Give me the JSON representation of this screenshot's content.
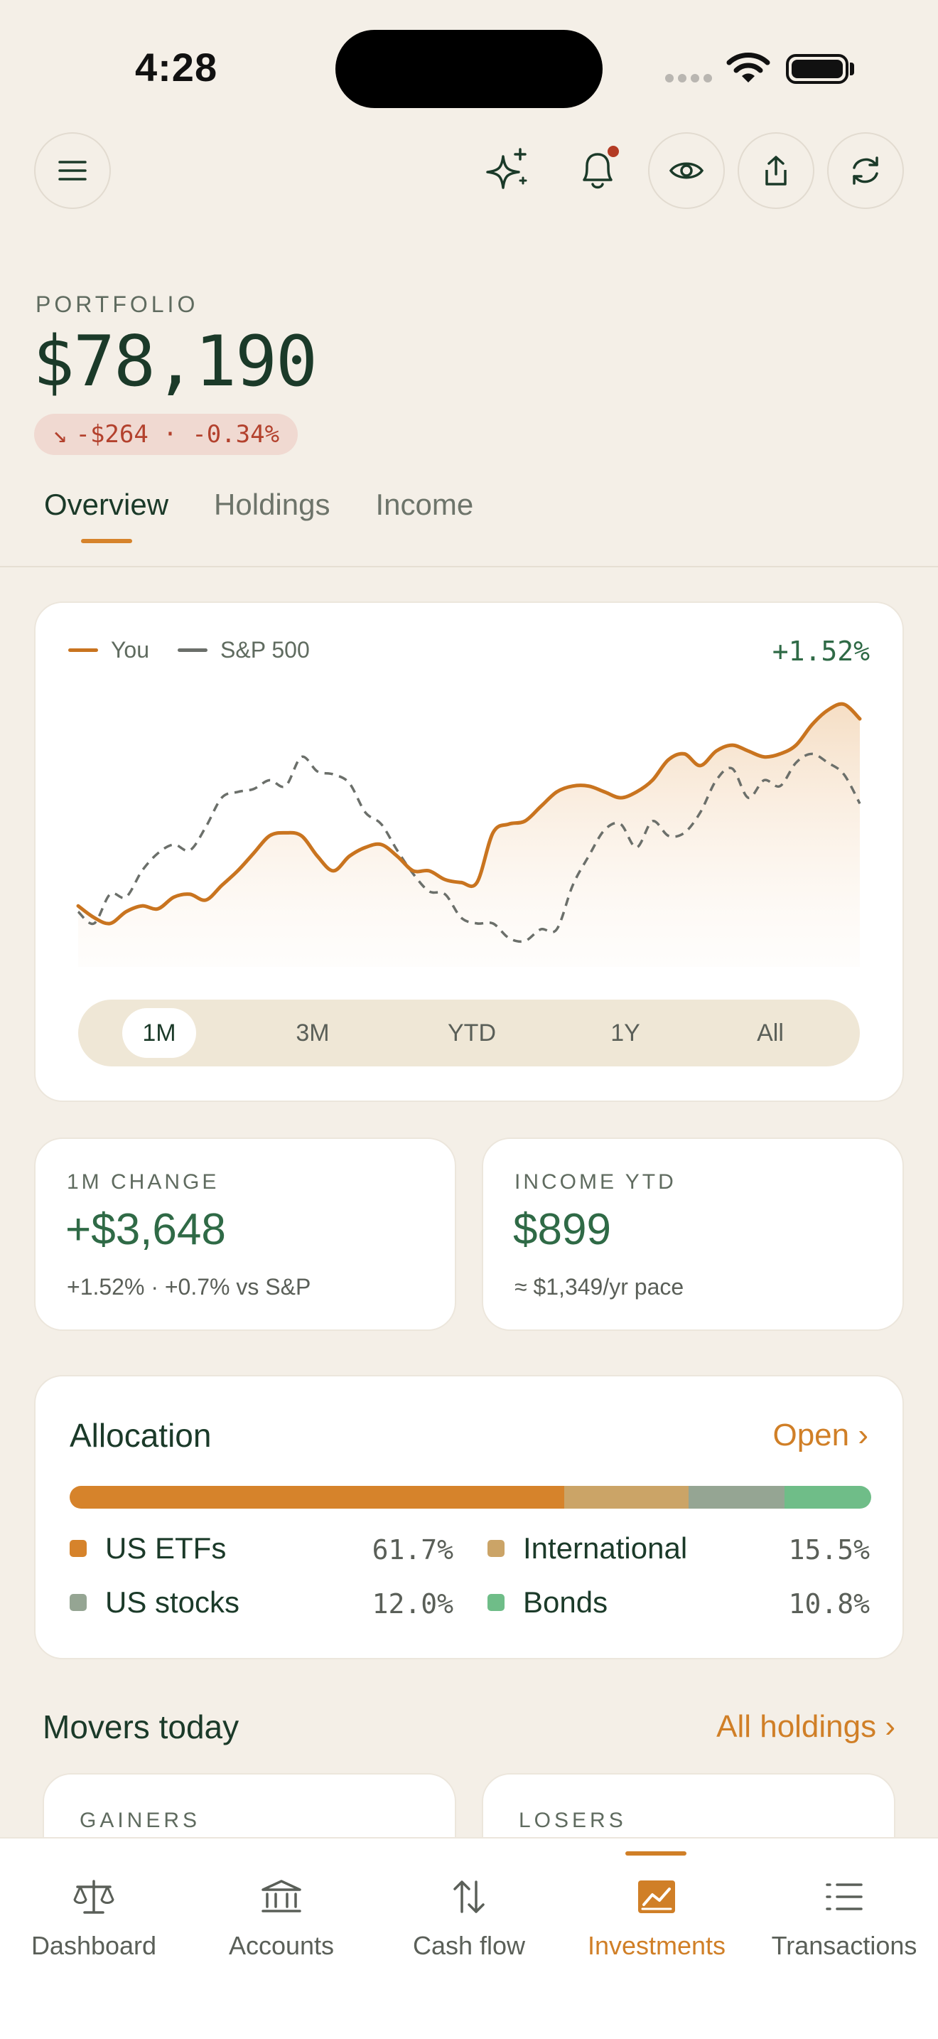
{
  "status_bar": {
    "time": "4:28"
  },
  "header": {
    "icons": [
      "menu-icon",
      "sparkle-icon",
      "bell-icon",
      "eye-icon",
      "share-icon",
      "refresh-icon"
    ],
    "bell_has_notification": true
  },
  "portfolio": {
    "label": "PORTFOLIO",
    "value": "$78,190",
    "change_arrow": "↘",
    "change": "-$264 · -0.34%"
  },
  "tabs": [
    {
      "label": "Overview",
      "active": true
    },
    {
      "label": "Holdings",
      "active": false
    },
    {
      "label": "Income",
      "active": false
    }
  ],
  "chart": {
    "legend": {
      "you": "You",
      "benchmark": "S&P 500"
    },
    "return_label": "+1.52%",
    "ranges": [
      {
        "label": "1M",
        "active": true
      },
      {
        "label": "3M",
        "active": false
      },
      {
        "label": "YTD",
        "active": false
      },
      {
        "label": "1Y",
        "active": false
      },
      {
        "label": "All",
        "active": false
      }
    ],
    "colors": {
      "you": "#c9741f",
      "benchmark": "#6b6f6a"
    }
  },
  "chart_data": {
    "type": "line",
    "x": [
      1,
      2,
      3,
      4,
      5,
      6,
      7,
      8,
      9,
      10,
      11,
      12,
      13,
      14,
      15,
      16,
      17,
      18,
      19,
      20,
      21,
      22,
      23,
      24,
      25,
      26,
      27,
      28,
      29,
      30,
      31,
      32,
      33,
      34,
      35,
      36,
      37,
      38,
      39,
      40,
      41,
      42,
      43,
      44,
      45,
      46,
      47,
      48,
      49,
      50
    ],
    "series": [
      {
        "name": "You",
        "values": [
          10,
          6,
          4,
          8,
          10,
          9,
          13,
          14,
          12,
          17,
          22,
          28,
          34,
          35,
          34,
          27,
          22,
          27,
          30,
          31,
          27,
          22,
          22,
          19,
          18,
          18,
          35,
          38,
          39,
          44,
          49,
          51,
          51,
          49,
          47,
          49,
          53,
          60,
          62,
          58,
          63,
          65,
          63,
          61,
          62,
          65,
          72,
          77,
          79,
          74
        ]
      },
      {
        "name": "S&P 500",
        "values": [
          8,
          4,
          14,
          13,
          22,
          28,
          31,
          29,
          37,
          47,
          49,
          50,
          53,
          51,
          61,
          56,
          55,
          52,
          42,
          38,
          29,
          21,
          15,
          14,
          6,
          4,
          4,
          -1,
          -2,
          2,
          2,
          17,
          27,
          36,
          38,
          30,
          39,
          34,
          35,
          42,
          53,
          57,
          47,
          53,
          51,
          59,
          62,
          59,
          55,
          45
        ]
      }
    ]
  },
  "stats": [
    {
      "label": "1M CHANGE",
      "value": "+$3,648",
      "sub": "+1.52% · +0.7% vs S&P"
    },
    {
      "label": "INCOME YTD",
      "value": "$899",
      "sub": "≈ $1,349/yr pace"
    }
  ],
  "allocation": {
    "title": "Allocation",
    "open_label": "Open ›",
    "items": [
      {
        "label": "US ETFs",
        "pct": "61.7%",
        "value": 61.7,
        "color": "#d6832b"
      },
      {
        "label": "International",
        "pct": "15.5%",
        "value": 15.5,
        "color": "#cba467"
      },
      {
        "label": "US stocks",
        "pct": "12.0%",
        "value": 12.0,
        "color": "#95a593"
      },
      {
        "label": "Bonds",
        "pct": "10.8%",
        "value": 10.8,
        "color": "#6fbd88"
      }
    ]
  },
  "movers": {
    "title": "Movers today",
    "link": "All holdings ›",
    "gainers_label": "GAINERS",
    "losers_label": "LOSERS"
  },
  "bottom_nav": [
    {
      "label": "Dashboard",
      "icon": "scale-icon",
      "active": false
    },
    {
      "label": "Accounts",
      "icon": "bank-icon",
      "active": false
    },
    {
      "label": "Cash flow",
      "icon": "arrows-up-down-icon",
      "active": false
    },
    {
      "label": "Investments",
      "icon": "chart-icon",
      "active": true
    },
    {
      "label": "Transactions",
      "icon": "list-icon",
      "active": false
    }
  ]
}
